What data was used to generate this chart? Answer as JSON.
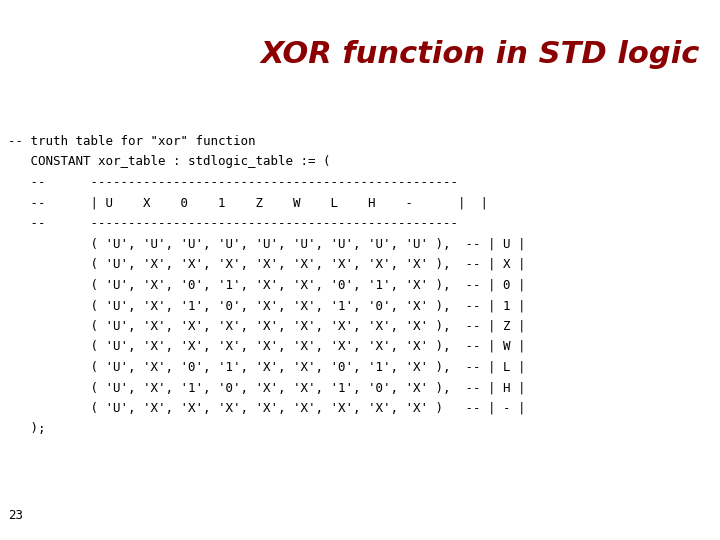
{
  "title": "XOR function in STD logic",
  "title_color": "#8B0000",
  "title_fontsize": 22,
  "bg_color": "#FFFFFF",
  "code_color": "#000000",
  "code_fontsize": 9.0,
  "page_number": "23",
  "lines": [
    "-- truth table for \"xor\" function",
    "   CONSTANT xor_table : stdlogic_table := (",
    "   --      -------------------------------------------------",
    "   --      | U    X    0    1    Z    W    L    H    -      |  |",
    "   --      -------------------------------------------------",
    "           ( 'U', 'U', 'U', 'U', 'U', 'U', 'U', 'U', 'U' ),  -- | U |",
    "           ( 'U', 'X', 'X', 'X', 'X', 'X', 'X', 'X', 'X' ),  -- | X |",
    "           ( 'U', 'X', '0', '1', 'X', 'X', '0', '1', 'X' ),  -- | 0 |",
    "           ( 'U', 'X', '1', '0', 'X', 'X', '1', '0', 'X' ),  -- | 1 |",
    "           ( 'U', 'X', 'X', 'X', 'X', 'X', 'X', 'X', 'X' ),  -- | Z |",
    "           ( 'U', 'X', 'X', 'X', 'X', 'X', 'X', 'X', 'X' ),  -- | W |",
    "           ( 'U', 'X', '0', '1', 'X', 'X', '0', '1', 'X' ),  -- | L |",
    "           ( 'U', 'X', '1', '0', 'X', 'X', '1', '0', 'X' ),  -- | H |",
    "           ( 'U', 'X', 'X', 'X', 'X', 'X', 'X', 'X', 'X' )   -- | - |",
    "   );"
  ]
}
